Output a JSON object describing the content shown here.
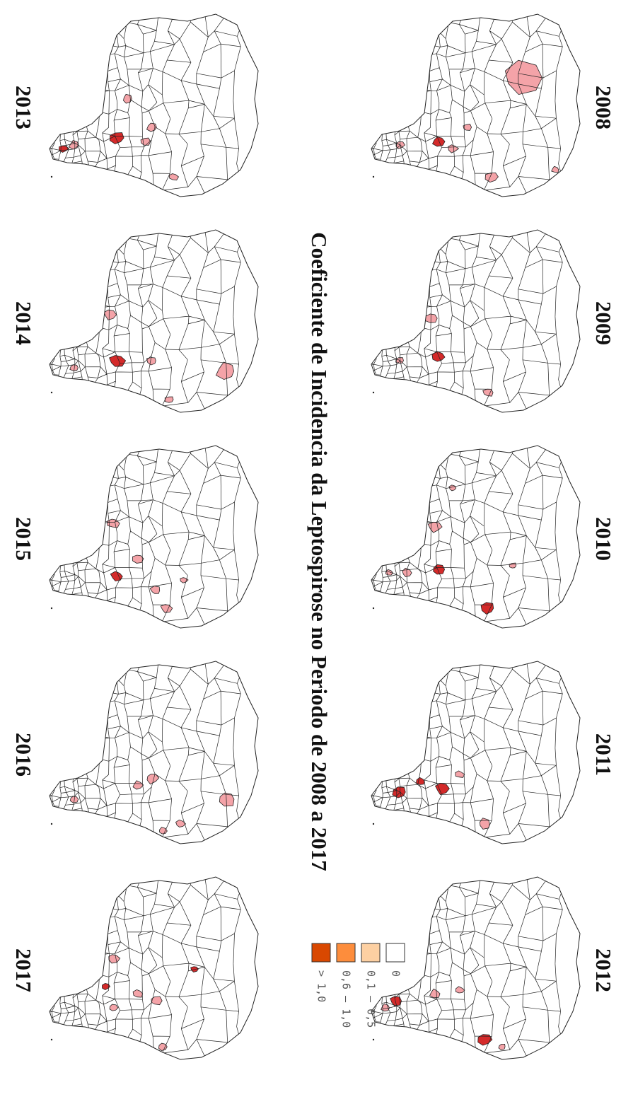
{
  "title": "Coeficiente de Incidencia da Leptospirose no Periodo de 2008 a 2017",
  "maps": [
    {
      "year": "2008"
    },
    {
      "year": "2009"
    },
    {
      "year": "2010"
    },
    {
      "year": "2011"
    },
    {
      "year": "2012"
    },
    {
      "year": "2013"
    },
    {
      "year": "2014"
    },
    {
      "year": "2015"
    },
    {
      "year": "2016"
    },
    {
      "year": "2017"
    }
  ],
  "legend": {
    "items": [
      {
        "label": "0",
        "color": "#ffffff"
      },
      {
        "label": "0,1 – 0,5",
        "color": "#fdd0a2"
      },
      {
        "label": "0,6 – 1,0",
        "color": "#fd8d3c"
      },
      {
        "label": "> 1,0",
        "color": "#d94801"
      }
    ]
  }
}
